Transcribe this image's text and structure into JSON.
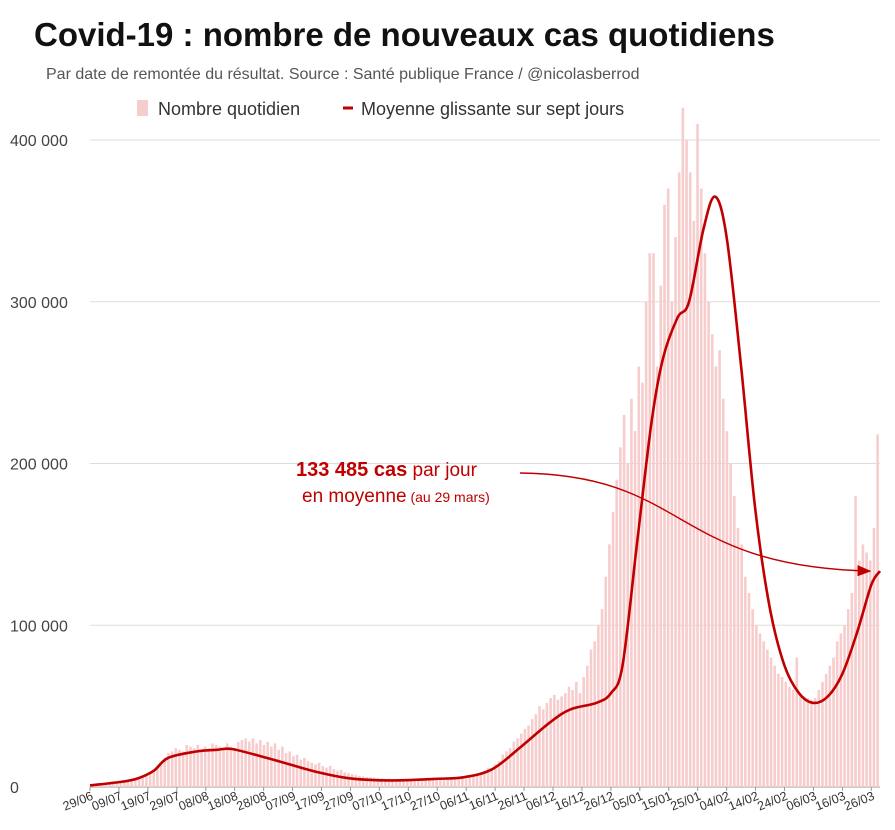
{
  "title": "Covid-19 : nombre de nouveaux cas quotidiens",
  "subtitle": "Par date de remontée du résultat. Source : Santé publique France / @nicolasberrod",
  "colors": {
    "bars": "#f7cccc",
    "line": "#c00000",
    "grid": "#dddddd",
    "annotation": "#c00000"
  },
  "chart_data": {
    "type": "bar",
    "ylim": [
      0,
      400000
    ],
    "yticks": [
      0,
      100000,
      200000,
      300000,
      400000
    ],
    "ytick_labels": [
      "0",
      "100 000",
      "200 000",
      "300 000",
      "400 000"
    ],
    "start_date": "2020-06-29",
    "end_date": "2021-03-29",
    "xtick_labels": [
      "29/06",
      "09/07",
      "19/07",
      "29/07",
      "08/08",
      "18/08",
      "28/08",
      "07/09",
      "17/09",
      "27/09",
      "07/10",
      "17/10",
      "27/10",
      "06/11",
      "16/11",
      "26/11",
      "06/12",
      "16/12",
      "26/12",
      "05/01",
      "15/01",
      "25/01",
      "04/02",
      "14/02",
      "24/02",
      "06/03",
      "16/03",
      "26/03"
    ],
    "legend": [
      {
        "name": "Nombre quotidien",
        "marker": "bar"
      },
      {
        "name": "Moyenne glissante sur sept jours",
        "marker": "line"
      }
    ],
    "legend_position": "top",
    "grid": true,
    "series": [
      {
        "name": "Nombre quotidien",
        "type": "bar",
        "approximate_daily_values": [
          1000,
          1200,
          1500,
          1800,
          2000,
          1500,
          3000,
          3000,
          3500,
          4000,
          4500,
          5000,
          5500,
          6000,
          6000,
          7000,
          9000,
          11000,
          13000,
          15000,
          18000,
          21000,
          22000,
          24000,
          23000,
          22000,
          26000,
          25000,
          24000,
          26000,
          23000,
          25000,
          24000,
          27000,
          26000,
          25000,
          24000,
          27000,
          25000,
          24000,
          28000,
          29000,
          30000,
          28000,
          30000,
          27000,
          29000,
          26000,
          28000,
          25000,
          27000,
          23000,
          25000,
          21000,
          22000,
          19000,
          20000,
          17000,
          18000,
          16000,
          15000,
          14000,
          15000,
          13000,
          12000,
          13000,
          11000,
          10000,
          10500,
          9000,
          8500,
          8000,
          7500,
          7000,
          6500,
          6200,
          6000,
          5800,
          5500,
          5200,
          5000,
          5200,
          4800,
          4600,
          4500,
          4400,
          4200,
          4000,
          4200,
          4100,
          4300,
          4400,
          4600,
          4400,
          4800,
          5000,
          4600,
          5200,
          5000,
          5600,
          5200,
          5800,
          5000,
          6000,
          7000,
          8000,
          9000,
          10000,
          12000,
          11000,
          14000,
          16000,
          20000,
          22000,
          24000,
          28000,
          30000,
          33000,
          36000,
          38000,
          42000,
          45000,
          50000,
          48000,
          52000,
          55000,
          57000,
          54000,
          56000,
          58000,
          62000,
          60000,
          65000,
          58000,
          68000,
          75000,
          85000,
          90000,
          100000,
          110000,
          130000,
          150000,
          170000,
          190000,
          210000,
          230000,
          200000,
          240000,
          220000,
          260000,
          250000,
          300000,
          330000,
          330000,
          260000,
          310000,
          360000,
          370000,
          300000,
          340000,
          380000,
          420000,
          400000,
          380000,
          350000,
          410000,
          370000,
          330000,
          300000,
          280000,
          260000,
          270000,
          240000,
          220000,
          200000,
          180000,
          160000,
          150000,
          130000,
          120000,
          110000,
          100000,
          95000,
          90000,
          85000,
          80000,
          75000,
          70000,
          68000,
          65000,
          62000,
          60000,
          80000,
          58000,
          56000,
          55000,
          54000,
          55000,
          60000,
          65000,
          70000,
          75000,
          80000,
          90000,
          95000,
          100000,
          110000,
          120000,
          180000,
          140000,
          150000,
          145000,
          140000,
          160000,
          218000
        ],
        "color": "#f7cccc"
      },
      {
        "name": "Moyenne glissante sur sept jours",
        "type": "line",
        "points": [
          [
            "2020-06-29",
            1000
          ],
          [
            "2020-07-09",
            3000
          ],
          [
            "2020-07-15",
            5000
          ],
          [
            "2020-07-21",
            10000
          ],
          [
            "2020-07-26",
            18000
          ],
          [
            "2020-08-05",
            22000
          ],
          [
            "2020-08-12",
            23000
          ],
          [
            "2020-08-17",
            23500
          ],
          [
            "2020-08-27",
            19000
          ],
          [
            "2020-09-06",
            14000
          ],
          [
            "2020-09-16",
            9000
          ],
          [
            "2020-09-26",
            5500
          ],
          [
            "2020-10-06",
            4200
          ],
          [
            "2020-10-16",
            4200
          ],
          [
            "2020-10-26",
            5000
          ],
          [
            "2020-11-05",
            6000
          ],
          [
            "2020-11-15",
            11000
          ],
          [
            "2020-11-25",
            25000
          ],
          [
            "2020-12-05",
            40000
          ],
          [
            "2020-12-12",
            48000
          ],
          [
            "2020-12-21",
            52000
          ],
          [
            "2020-12-26",
            58000
          ],
          [
            "2020-12-30",
            75000
          ],
          [
            "2021-01-04",
            150000
          ],
          [
            "2021-01-09",
            225000
          ],
          [
            "2021-01-13",
            265000
          ],
          [
            "2021-01-18",
            290000
          ],
          [
            "2021-01-22",
            300000
          ],
          [
            "2021-01-27",
            345000
          ],
          [
            "2021-01-31",
            365000
          ],
          [
            "2021-02-04",
            340000
          ],
          [
            "2021-02-09",
            260000
          ],
          [
            "2021-02-14",
            170000
          ],
          [
            "2021-02-19",
            110000
          ],
          [
            "2021-02-24",
            75000
          ],
          [
            "2021-03-01",
            58000
          ],
          [
            "2021-03-06",
            52000
          ],
          [
            "2021-03-11",
            56000
          ],
          [
            "2021-03-16",
            70000
          ],
          [
            "2021-03-21",
            95000
          ],
          [
            "2021-03-26",
            125000
          ],
          [
            "2021-03-29",
            133485
          ]
        ],
        "color": "#c00000"
      }
    ],
    "annotation": {
      "value_label": "133 485 cas",
      "line1_rest": " par jour",
      "line2": "en moyenne",
      "line2_small": " (au 29 mars)",
      "target_date": "2021-03-29",
      "target_value": 133485
    }
  }
}
